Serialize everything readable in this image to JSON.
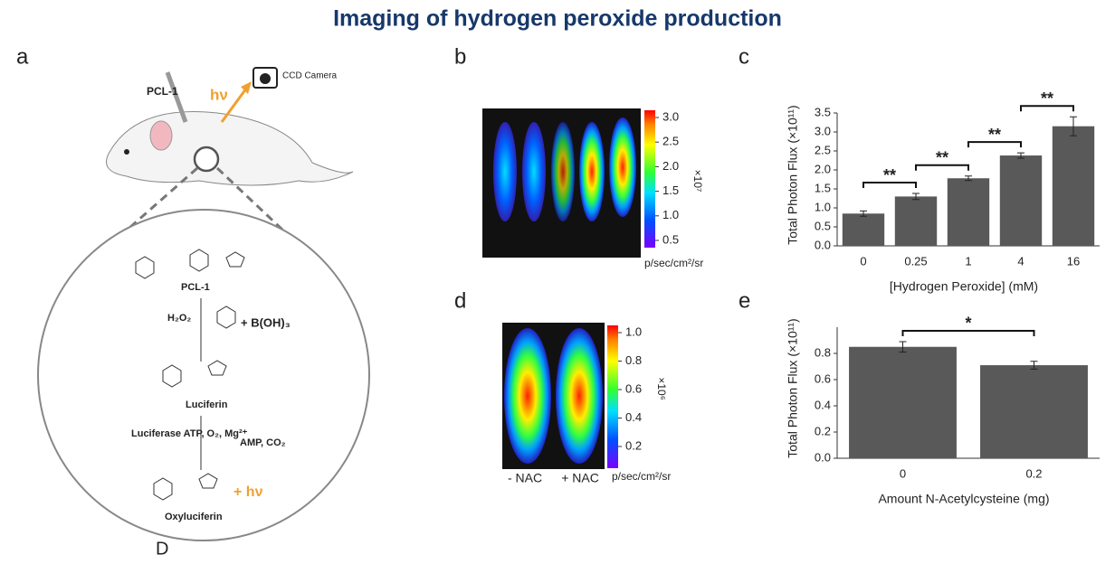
{
  "title": "Imaging of hydrogen peroxide production",
  "panel_a": {
    "label": "a",
    "probe": "PCL-1",
    "light": "hν",
    "camera": "CCD Camera",
    "reaction": {
      "reactant": "PCL-1",
      "reagent1": "H₂O₂",
      "byproduct1": "+ B(OH)₃",
      "product1": "Luciferin",
      "reagent2": "Luciferase ATP, O₂, Mg²⁺",
      "byproduct2": "AMP, CO₂",
      "product2": "Oxyluciferin",
      "light": "+ hν"
    },
    "caption": "D"
  },
  "panel_b": {
    "label": "b",
    "colorbar_ticks": [
      0.5,
      {
        "value": 1,
        "label": "1.0"
      },
      1.5,
      {
        "value": 2,
        "label": "2.0"
      },
      2.5,
      {
        "value": 3,
        "label": "3.0"
      }
    ],
    "multiplier": "×10⁷",
    "unit": "p/sec/cm²/sr"
  },
  "panel_d": {
    "label": "d",
    "colorbar_ticks": [
      0.2,
      0.4,
      0.6,
      0.8,
      {
        "value": 1,
        "label": "1.0"
      }
    ],
    "multiplier": "×10⁶",
    "unit": "p/sec/cm²/sr",
    "groups": [
      "- NAC",
      "+ NAC"
    ]
  },
  "chart_data": [
    {
      "type": "bar",
      "panel": "c",
      "categories": [
        "0",
        "0.25",
        "1",
        "4",
        "16"
      ],
      "values": [
        0.85,
        1.3,
        1.78,
        2.38,
        3.15
      ],
      "errors": [
        0.07,
        0.08,
        0.06,
        0.07,
        0.25
      ],
      "color": "#595959",
      "ylim": [
        0,
        3.5
      ],
      "yticks": [
        {
          "value": 0,
          "label": "0.0"
        },
        0.5,
        {
          "value": 1,
          "label": "1.0"
        },
        1.5,
        {
          "value": 2,
          "label": "2.0"
        },
        2.5,
        {
          "value": 3,
          "label": "3.0"
        },
        3.5
      ],
      "y_label": "Total Photon Flux (×10¹¹)",
      "x_label": "[Hydrogen Peroxide] (mM)",
      "annotations": [
        "**",
        "**",
        "**",
        "**"
      ]
    },
    {
      "type": "bar",
      "panel": "e",
      "categories": [
        "0",
        "0.2"
      ],
      "values": [
        0.85,
        0.71
      ],
      "errors": [
        0.04,
        0.03
      ],
      "color": "#595959",
      "ylim": [
        0,
        1.0
      ],
      "yticks": [
        {
          "value": 0,
          "label": "0.0"
        },
        0.2,
        0.4,
        0.6,
        0.8
      ],
      "y_label": "Total Photon Flux (×10¹¹)",
      "x_label": "Amount N-Acetylcysteine (mg)",
      "annotations": [
        "*"
      ]
    }
  ]
}
